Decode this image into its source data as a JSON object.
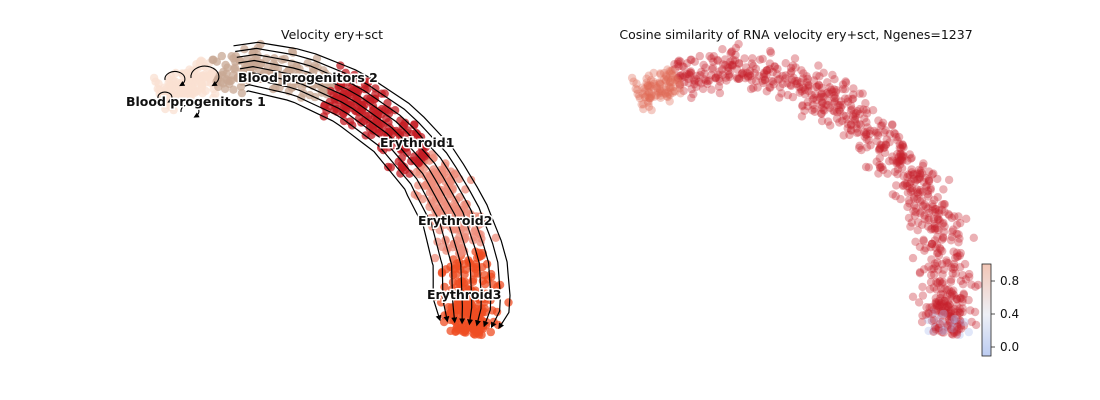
{
  "chart_data": [
    {
      "type": "scatter",
      "title": "Velocity ery+sct",
      "subtype": "embedding-streamplot",
      "axes_visible": false,
      "grid": false,
      "clusters": [
        {
          "label": "Blood progenitors 1",
          "color": "#f9e0d2"
        },
        {
          "label": "Blood progenitors 2",
          "color": "#c8a894"
        },
        {
          "label": "Erythroid1",
          "color": "#c41e24"
        },
        {
          "label": "Erythroid2",
          "color": "#ee8e7c"
        },
        {
          "label": "Erythroid3",
          "color": "#ef4e23"
        }
      ],
      "stream_color": "#000000"
    },
    {
      "type": "scatter",
      "title": "Cosine similarity of RNA velocity ery+sct, Ngenes=1237",
      "axes_visible": false,
      "grid": false,
      "colormap": "coolwarm",
      "dominant_color": "#c5202a",
      "colorbar": {
        "range": [
          -0.1,
          1.0
        ],
        "ticks": [
          {
            "value": 0.8,
            "label": "0.8"
          },
          {
            "value": 0.4,
            "label": "0.4"
          },
          {
            "value": 0.0,
            "label": "0.0"
          }
        ],
        "placement": "right-bottom"
      }
    }
  ]
}
